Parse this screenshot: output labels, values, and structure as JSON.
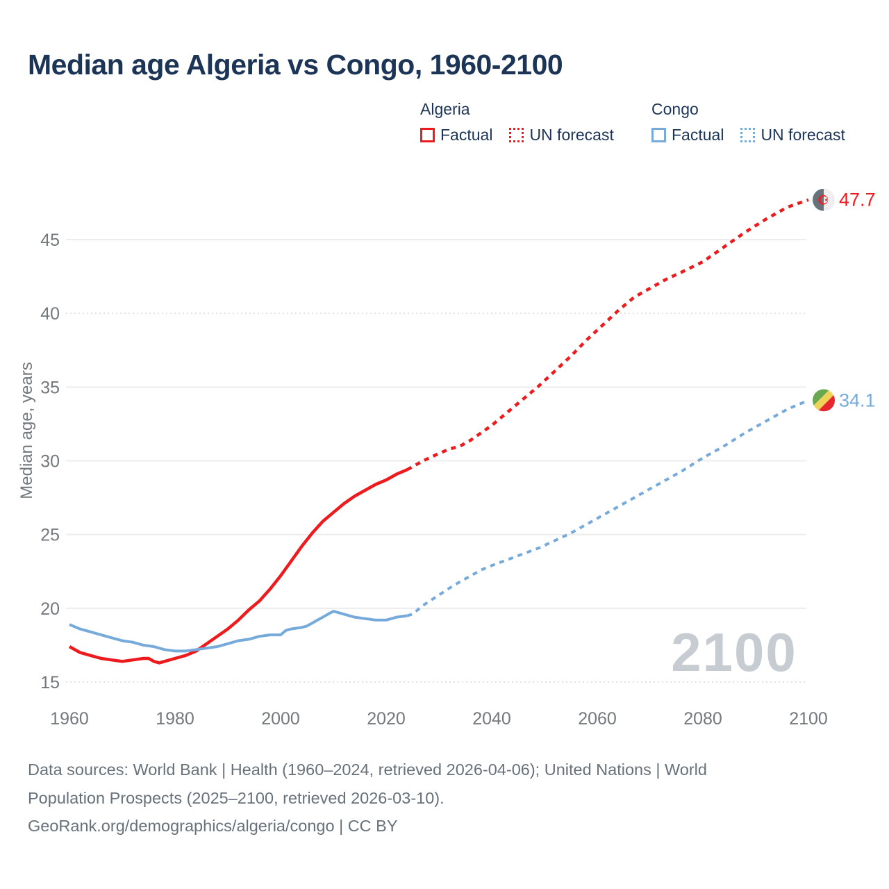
{
  "title": "Median age Algeria vs Congo, 1960-2100",
  "colors": {
    "algeria": "#ee1b1e",
    "congo": "#76aadb",
    "title_text": "#1c3557",
    "axis_text": "#73787d",
    "gridline": "#ececec",
    "watermark": "#c7ccd2",
    "footer_text": "#68717a"
  },
  "legend": {
    "groups": [
      {
        "name": "Algeria",
        "color": "#ee1b1e",
        "items": [
          {
            "label": "Factual",
            "style": "solid"
          },
          {
            "label": "UN forecast",
            "style": "dotted"
          }
        ]
      },
      {
        "name": "Congo",
        "color": "#76aadb",
        "items": [
          {
            "label": "Factual",
            "style": "solid"
          },
          {
            "label": "UN forecast",
            "style": "dotted"
          }
        ]
      }
    ]
  },
  "chart_data": {
    "type": "line",
    "title": "Median age Algeria vs Congo, 1960-2100",
    "xlabel": "",
    "ylabel": "Median age, years",
    "x_ticks": [
      1960,
      1980,
      2000,
      2020,
      2040,
      2060,
      2080,
      2100
    ],
    "y_ticks": [
      15,
      20,
      25,
      30,
      35,
      40,
      45
    ],
    "grid_dotted_at": [
      15,
      40
    ],
    "xlim": [
      1958,
      2112
    ],
    "ylim": [
      13.5,
      48.8
    ],
    "watermark": "2100",
    "legend_position": "top-right",
    "series": [
      {
        "name": "Algeria factual",
        "color": "#ee1b1e",
        "dash": false,
        "points": [
          [
            1960,
            17.4
          ],
          [
            1962,
            17.0
          ],
          [
            1964,
            16.8
          ],
          [
            1966,
            16.6
          ],
          [
            1968,
            16.5
          ],
          [
            1970,
            16.4
          ],
          [
            1972,
            16.5
          ],
          [
            1974,
            16.6
          ],
          [
            1975,
            16.6
          ],
          [
            1976,
            16.4
          ],
          [
            1977,
            16.3
          ],
          [
            1978,
            16.4
          ],
          [
            1980,
            16.6
          ],
          [
            1982,
            16.8
          ],
          [
            1984,
            17.1
          ],
          [
            1986,
            17.6
          ],
          [
            1988,
            18.1
          ],
          [
            1990,
            18.6
          ],
          [
            1992,
            19.2
          ],
          [
            1994,
            19.9
          ],
          [
            1996,
            20.5
          ],
          [
            1998,
            21.3
          ],
          [
            2000,
            22.2
          ],
          [
            2002,
            23.2
          ],
          [
            2004,
            24.2
          ],
          [
            2006,
            25.1
          ],
          [
            2008,
            25.9
          ],
          [
            2010,
            26.5
          ],
          [
            2012,
            27.1
          ],
          [
            2014,
            27.6
          ],
          [
            2016,
            28.0
          ],
          [
            2018,
            28.4
          ],
          [
            2020,
            28.7
          ],
          [
            2022,
            29.1
          ],
          [
            2024,
            29.4
          ]
        ]
      },
      {
        "name": "Algeria UN forecast",
        "color": "#ee1b1e",
        "dash": true,
        "points": [
          [
            2024,
            29.4
          ],
          [
            2025,
            29.6
          ],
          [
            2027,
            30.0
          ],
          [
            2030,
            30.5
          ],
          [
            2032,
            30.8
          ],
          [
            2034,
            31.0
          ],
          [
            2036,
            31.4
          ],
          [
            2038,
            31.9
          ],
          [
            2040,
            32.4
          ],
          [
            2043,
            33.3
          ],
          [
            2046,
            34.2
          ],
          [
            2049,
            35.1
          ],
          [
            2052,
            36.1
          ],
          [
            2055,
            37.1
          ],
          [
            2058,
            38.2
          ],
          [
            2061,
            39.2
          ],
          [
            2064,
            40.2
          ],
          [
            2067,
            41.1
          ],
          [
            2070,
            41.7
          ],
          [
            2073,
            42.3
          ],
          [
            2076,
            42.8
          ],
          [
            2080,
            43.5
          ],
          [
            2084,
            44.5
          ],
          [
            2088,
            45.5
          ],
          [
            2092,
            46.4
          ],
          [
            2096,
            47.2
          ],
          [
            2100,
            47.7
          ]
        ]
      },
      {
        "name": "Congo factual",
        "color": "#76aadb",
        "dash": false,
        "points": [
          [
            1960,
            18.9
          ],
          [
            1962,
            18.6
          ],
          [
            1964,
            18.4
          ],
          [
            1966,
            18.2
          ],
          [
            1968,
            18.0
          ],
          [
            1970,
            17.8
          ],
          [
            1972,
            17.7
          ],
          [
            1974,
            17.5
          ],
          [
            1976,
            17.4
          ],
          [
            1978,
            17.2
          ],
          [
            1980,
            17.1
          ],
          [
            1982,
            17.1
          ],
          [
            1984,
            17.2
          ],
          [
            1986,
            17.3
          ],
          [
            1988,
            17.4
          ],
          [
            1990,
            17.6
          ],
          [
            1992,
            17.8
          ],
          [
            1994,
            17.9
          ],
          [
            1996,
            18.1
          ],
          [
            1998,
            18.2
          ],
          [
            2000,
            18.2
          ],
          [
            2001,
            18.5
          ],
          [
            2002,
            18.6
          ],
          [
            2004,
            18.7
          ],
          [
            2005,
            18.8
          ],
          [
            2006,
            19.0
          ],
          [
            2007,
            19.2
          ],
          [
            2008,
            19.4
          ],
          [
            2009,
            19.6
          ],
          [
            2010,
            19.8
          ],
          [
            2011,
            19.7
          ],
          [
            2012,
            19.6
          ],
          [
            2014,
            19.4
          ],
          [
            2016,
            19.3
          ],
          [
            2018,
            19.2
          ],
          [
            2020,
            19.2
          ],
          [
            2022,
            19.4
          ],
          [
            2024,
            19.5
          ]
        ]
      },
      {
        "name": "Congo UN forecast",
        "color": "#76aadb",
        "dash": true,
        "points": [
          [
            2024,
            19.5
          ],
          [
            2025,
            19.6
          ],
          [
            2027,
            20.2
          ],
          [
            2030,
            20.9
          ],
          [
            2033,
            21.6
          ],
          [
            2035,
            22.0
          ],
          [
            2038,
            22.6
          ],
          [
            2040,
            22.9
          ],
          [
            2043,
            23.3
          ],
          [
            2046,
            23.7
          ],
          [
            2049,
            24.1
          ],
          [
            2052,
            24.6
          ],
          [
            2055,
            25.1
          ],
          [
            2058,
            25.7
          ],
          [
            2061,
            26.3
          ],
          [
            2064,
            26.9
          ],
          [
            2067,
            27.5
          ],
          [
            2070,
            28.1
          ],
          [
            2073,
            28.7
          ],
          [
            2076,
            29.3
          ],
          [
            2080,
            30.2
          ],
          [
            2084,
            31.0
          ],
          [
            2088,
            31.9
          ],
          [
            2092,
            32.7
          ],
          [
            2096,
            33.5
          ],
          [
            2100,
            34.1
          ]
        ]
      }
    ],
    "end_labels": [
      {
        "value": "47.7",
        "y": 47.7,
        "color": "#ee1b1e",
        "flag": "algeria"
      },
      {
        "value": "34.1",
        "y": 34.1,
        "color": "#76aadb",
        "flag": "congo"
      }
    ]
  },
  "footer": {
    "lines": [
      "Data sources: World Bank | Health (1960–2024, retrieved 2026-04-06); United Nations | World",
      "Population Prospects (2025–2100, retrieved 2026-03-10).",
      "GeoRank.org/demographics/algeria/congo | CC BY"
    ]
  }
}
